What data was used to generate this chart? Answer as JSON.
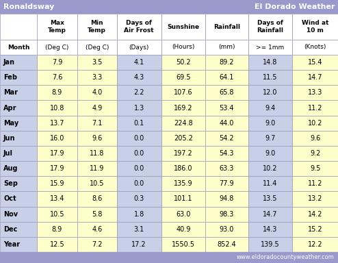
{
  "title_left": "Ronaldsway",
  "title_right": "El Dorado Weather",
  "footer": "www.eldoradocountyweather.com",
  "col_headers_line1": [
    "",
    "Max\nTemp",
    "Min\nTemp",
    "Days of\nAir Frost",
    "Sunshine",
    "Rainfall",
    "Days of\nRainfall",
    "Wind at\n10 m"
  ],
  "col_headers_line2": [
    "Month",
    "(Deg C)",
    "(Deg C)",
    "(Days)",
    "(Hours)",
    "(mm)",
    ">= 1mm",
    "(Knots)"
  ],
  "rows": [
    [
      "Jan",
      7.9,
      3.5,
      4.1,
      50.2,
      89.2,
      14.8,
      15.4
    ],
    [
      "Feb",
      7.6,
      3.3,
      4.3,
      69.5,
      64.1,
      11.5,
      14.7
    ],
    [
      "Mar",
      8.9,
      4.0,
      2.2,
      107.6,
      65.8,
      12.0,
      13.3
    ],
    [
      "Apr",
      10.8,
      4.9,
      1.3,
      169.2,
      53.4,
      9.4,
      11.2
    ],
    [
      "May",
      13.7,
      7.1,
      0.1,
      224.8,
      44.0,
      9.0,
      10.2
    ],
    [
      "Jun",
      16.0,
      9.6,
      0.0,
      205.2,
      54.2,
      9.7,
      9.6
    ],
    [
      "Jul",
      17.9,
      11.8,
      0.0,
      197.2,
      54.3,
      9.0,
      9.2
    ],
    [
      "Aug",
      17.9,
      11.9,
      0.0,
      186.0,
      63.3,
      10.2,
      9.5
    ],
    [
      "Sep",
      15.9,
      10.5,
      0.0,
      135.9,
      77.9,
      11.4,
      11.2
    ],
    [
      "Oct",
      13.4,
      8.6,
      0.3,
      101.1,
      94.8,
      13.5,
      13.2
    ],
    [
      "Nov",
      10.5,
      5.8,
      1.8,
      63.0,
      98.3,
      14.7,
      14.2
    ],
    [
      "Dec",
      8.9,
      4.6,
      3.1,
      40.9,
      93.0,
      14.3,
      15.2
    ],
    [
      "Year",
      12.5,
      7.2,
      17.2,
      1550.5,
      852.4,
      139.5,
      12.2
    ]
  ],
  "col_colors": [
    "#c8d0e8",
    "#ffffcc",
    "#ffffcc",
    "#c8d0e8",
    "#ffffcc",
    "#ffffcc",
    "#c8d0e8",
    "#ffffcc"
  ],
  "color_title_bg": "#9999cc",
  "color_title_text": "#ffffff",
  "color_header_bg": "#ffffff",
  "color_border": "#9999bb",
  "color_footer_bg": "#9999cc",
  "color_footer_text": "#ffffff",
  "color_data_text": "#000000"
}
